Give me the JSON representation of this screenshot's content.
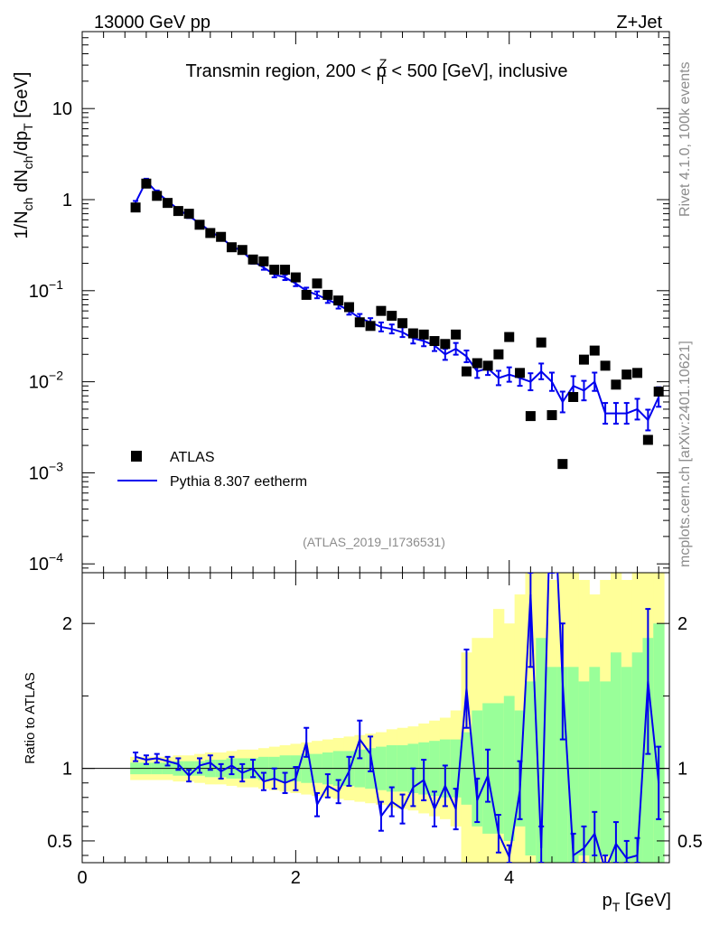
{
  "header": {
    "left": "13000 GeV pp",
    "right": "Z+Jet"
  },
  "side": {
    "rivet": "Rivet 4.1.0,  100k events",
    "mcplots": "mcplots.cern.ch [arXiv:2401.10621]"
  },
  "analysis_id": "(ATLAS_2019_I1736531)",
  "chart_data": [
    {
      "type": "scatter",
      "title": "Transmin region, 200 < p_T^Z < 500 [GeV], inclusive",
      "title_parts": {
        "a": "Transmin region, 200 < p",
        "sub": "T",
        "sup": "Z",
        "b": " < 500 [GeV], inclusive"
      },
      "ylabel": "1/N_ch dN_ch/dp_T [GeV]",
      "ylabel_parts": {
        "a": "1/N",
        "s1": "ch",
        "b": " dN",
        "s2": "ch",
        "c": "/dp",
        "s3": "T",
        "d": " [GeV]"
      },
      "yscale": "log",
      "ylim": [
        8e-05,
        70
      ],
      "xlim": [
        0,
        5.5
      ],
      "yticks": [
        {
          "v": 10,
          "base": "10",
          "exp": ""
        },
        {
          "v": 1,
          "base": "1",
          "exp": ""
        },
        {
          "v": 0.1,
          "base": "10",
          "exp": "−1"
        },
        {
          "v": 0.01,
          "base": "10",
          "exp": "−2"
        },
        {
          "v": 0.001,
          "base": "10",
          "exp": "−3"
        },
        {
          "v": 0.0001,
          "base": "10",
          "exp": "−4"
        }
      ],
      "legend": [
        "ATLAS",
        "Pythia 8.307 eetherm"
      ],
      "legend_position": "bottom-left",
      "series": [
        {
          "name": "ATLAS",
          "x": [
            0.5,
            0.6,
            0.7,
            0.8,
            0.9,
            1.0,
            1.1,
            1.2,
            1.3,
            1.4,
            1.5,
            1.6,
            1.7,
            1.8,
            1.9,
            2.0,
            2.1,
            2.2,
            2.3,
            2.4,
            2.5,
            2.6,
            2.7,
            2.8,
            2.9,
            3.0,
            3.1,
            3.2,
            3.3,
            3.4,
            3.5,
            3.6,
            3.7,
            3.8,
            3.9,
            4.0,
            4.1,
            4.2,
            4.3,
            4.4,
            4.5,
            4.6,
            4.7,
            4.8,
            4.9,
            5.0,
            5.1,
            5.2,
            5.3,
            5.4
          ],
          "values": [
            0.82,
            1.5,
            1.1,
            0.92,
            0.75,
            0.7,
            0.53,
            0.43,
            0.39,
            0.3,
            0.28,
            0.22,
            0.21,
            0.17,
            0.17,
            0.14,
            0.09,
            0.12,
            0.09,
            0.078,
            0.066,
            0.045,
            0.041,
            0.06,
            0.053,
            0.044,
            0.034,
            0.033,
            0.028,
            0.026,
            0.033,
            0.013,
            0.016,
            0.015,
            0.02,
            0.031,
            0.0125,
            0.0042,
            0.027,
            0.0043,
            0.00125,
            0.0068,
            0.0175,
            0.022,
            0.015,
            0.0093,
            0.012,
            0.0125,
            0.0023,
            0.0078
          ]
        },
        {
          "name": "Pythia 8.307 eetherm",
          "x": [
            0.5,
            0.6,
            0.7,
            0.8,
            0.9,
            1.0,
            1.1,
            1.2,
            1.3,
            1.4,
            1.5,
            1.6,
            1.7,
            1.8,
            1.9,
            2.0,
            2.1,
            2.2,
            2.3,
            2.4,
            2.5,
            2.6,
            2.7,
            2.8,
            2.9,
            3.0,
            3.1,
            3.2,
            3.3,
            3.4,
            3.5,
            3.6,
            3.7,
            3.8,
            3.9,
            4.0,
            4.1,
            4.2,
            4.3,
            4.4,
            4.5,
            4.6,
            4.7,
            4.8,
            4.9,
            5.0,
            5.1,
            5.2,
            5.3,
            5.4
          ],
          "values": [
            0.93,
            1.6,
            1.2,
            0.97,
            0.78,
            0.66,
            0.55,
            0.45,
            0.38,
            0.31,
            0.27,
            0.21,
            0.18,
            0.15,
            0.14,
            0.12,
            0.1,
            0.09,
            0.08,
            0.07,
            0.06,
            0.05,
            0.045,
            0.04,
            0.038,
            0.035,
            0.03,
            0.028,
            0.025,
            0.02,
            0.023,
            0.019,
            0.013,
            0.014,
            0.011,
            0.012,
            0.011,
            0.01,
            0.013,
            0.01,
            0.006,
            0.009,
            0.008,
            0.01,
            0.0045,
            0.0045,
            0.0045,
            0.005,
            0.0038,
            0.0068
          ],
          "err": [
            0.04,
            0.06,
            0.05,
            0.04,
            0.04,
            0.05,
            0.05,
            0.05,
            0.05,
            0.05,
            0.05,
            0.06,
            0.06,
            0.07,
            0.07,
            0.07,
            0.08,
            0.09,
            0.09,
            0.1,
            0.1,
            0.11,
            0.11,
            0.12,
            0.12,
            0.13,
            0.14,
            0.14,
            0.15,
            0.15,
            0.16,
            0.16,
            0.18,
            0.18,
            0.2,
            0.2,
            0.22,
            0.24,
            0.22,
            0.26,
            0.3,
            0.28,
            0.28,
            0.26,
            0.3,
            0.3,
            0.3,
            0.3,
            0.3,
            0.28
          ]
        }
      ]
    },
    {
      "type": "line",
      "ylabel": "Ratio to ATLAS",
      "xlabel": "p_T [GeV]",
      "xlabel_parts": {
        "a": "p",
        "sub": "T",
        "b": " [GeV]"
      },
      "xlim": [
        0,
        5.5
      ],
      "ylim": [
        0.35,
        2.35
      ],
      "xticks": [
        0,
        2,
        4
      ],
      "yticks": [
        0.5,
        1,
        2
      ],
      "reference": 1,
      "band_x": [
        0.45,
        0.55,
        0.65,
        0.75,
        0.85,
        0.95,
        1.05,
        1.15,
        1.25,
        1.35,
        1.45,
        1.55,
        1.65,
        1.75,
        1.85,
        1.95,
        2.05,
        2.15,
        2.25,
        2.35,
        2.45,
        2.55,
        2.65,
        2.75,
        2.85,
        2.95,
        3.05,
        3.15,
        3.25,
        3.35,
        3.45,
        3.55,
        3.65,
        3.75,
        3.85,
        3.95,
        4.05,
        4.15,
        4.25,
        4.35,
        4.45,
        4.55,
        4.65,
        4.75,
        4.85,
        4.95,
        5.05,
        5.15,
        5.25,
        5.35,
        5.45
      ],
      "band_green": [
        0.04,
        0.04,
        0.04,
        0.04,
        0.05,
        0.05,
        0.05,
        0.06,
        0.06,
        0.07,
        0.07,
        0.07,
        0.08,
        0.08,
        0.09,
        0.09,
        0.1,
        0.1,
        0.11,
        0.12,
        0.12,
        0.13,
        0.14,
        0.15,
        0.16,
        0.16,
        0.17,
        0.18,
        0.19,
        0.2,
        0.2,
        0.25,
        0.4,
        0.45,
        0.45,
        0.5,
        0.4,
        0.6,
        0.9,
        0.7,
        0.7,
        0.7,
        0.6,
        0.7,
        0.6,
        0.8,
        0.7,
        0.8,
        0.9,
        1.0
      ],
      "band_yellow": [
        0.08,
        0.08,
        0.08,
        0.08,
        0.09,
        0.09,
        0.1,
        0.11,
        0.11,
        0.12,
        0.13,
        0.13,
        0.14,
        0.15,
        0.16,
        0.17,
        0.18,
        0.19,
        0.2,
        0.21,
        0.22,
        0.23,
        0.24,
        0.25,
        0.27,
        0.28,
        0.29,
        0.31,
        0.33,
        0.35,
        0.4,
        0.8,
        0.9,
        0.9,
        1.1,
        1.0,
        1.2,
        1.4,
        1.4,
        1.3,
        1.4,
        1.4,
        1.3,
        1.2,
        1.3,
        1.4,
        1.3,
        1.4,
        1.4,
        1.4
      ],
      "series": [
        {
          "name": "Pythia 8.307 eetherm / ATLAS",
          "x": [
            0.5,
            0.6,
            0.7,
            0.8,
            0.9,
            1.0,
            1.1,
            1.2,
            1.3,
            1.4,
            1.5,
            1.6,
            1.7,
            1.8,
            1.9,
            2.0,
            2.1,
            2.2,
            2.3,
            2.4,
            2.5,
            2.6,
            2.7,
            2.8,
            2.9,
            3.0,
            3.1,
            3.2,
            3.3,
            3.4,
            3.5,
            3.6,
            3.7,
            3.8,
            3.9,
            4.0,
            4.1,
            4.2,
            4.3,
            4.4,
            4.5,
            4.6,
            4.7,
            4.8,
            4.9,
            5.0,
            5.1,
            5.2,
            5.3,
            5.4
          ],
          "values": [
            1.08,
            1.06,
            1.07,
            1.05,
            1.03,
            0.95,
            1.02,
            1.04,
            0.98,
            1.02,
            0.97,
            1.0,
            0.91,
            0.93,
            0.9,
            0.93,
            1.18,
            0.75,
            0.88,
            0.84,
            0.98,
            1.2,
            1.1,
            0.67,
            0.77,
            0.72,
            0.87,
            0.92,
            0.72,
            0.88,
            0.72,
            1.55,
            0.78,
            0.95,
            0.55,
            0.39,
            0.85,
            2.2,
            0.45,
            3.2,
            1.6,
            0.4,
            0.45,
            0.55,
            0.3,
            0.48,
            0.38,
            0.4,
            1.6,
            0.9
          ],
          "err": [
            0.03,
            0.03,
            0.03,
            0.03,
            0.04,
            0.04,
            0.05,
            0.05,
            0.05,
            0.06,
            0.06,
            0.06,
            0.06,
            0.07,
            0.07,
            0.08,
            0.1,
            0.08,
            0.08,
            0.08,
            0.1,
            0.13,
            0.12,
            0.1,
            0.1,
            0.1,
            0.13,
            0.14,
            0.12,
            0.14,
            0.14,
            0.27,
            0.15,
            0.18,
            0.13,
            0.08,
            0.2,
            0.5,
            0.15,
            0.8,
            0.4,
            0.15,
            0.15,
            0.15,
            0.1,
            0.15,
            0.12,
            0.12,
            0.5,
            0.25
          ]
        }
      ]
    }
  ]
}
